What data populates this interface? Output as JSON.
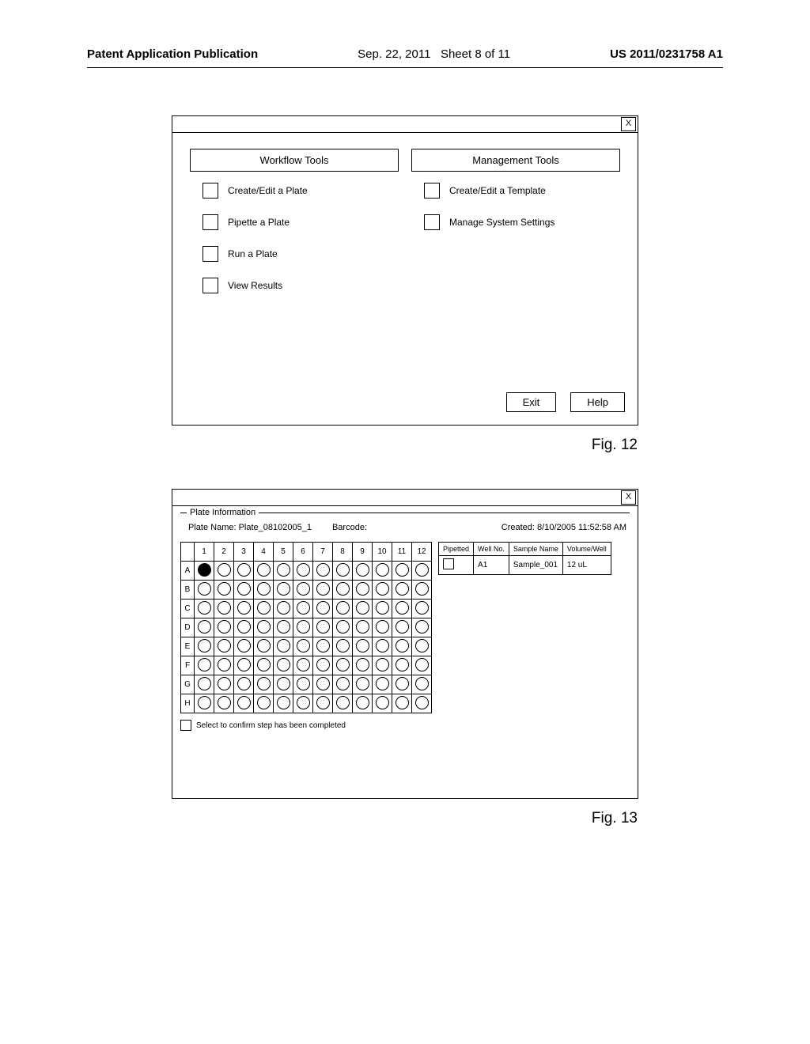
{
  "header": {
    "left": "Patent Application Publication",
    "date": "Sep. 22, 2011",
    "sheet": "Sheet 8 of 11",
    "pubno": "US 2011/0231758 A1"
  },
  "fig12": {
    "close": "X",
    "workflow_title": "Workflow Tools",
    "management_title": "Management Tools",
    "workflow": [
      "Create/Edit a Plate",
      "Pipette a Plate",
      "Run a Plate",
      "View Results"
    ],
    "management": [
      "Create/Edit a Template",
      "Manage System Settings"
    ],
    "exit": "Exit",
    "help": "Help",
    "caption": "Fig. 12"
  },
  "fig13": {
    "close": "X",
    "pi_label": "Plate Information",
    "plate_name_lbl": "Plate Name:",
    "plate_name": "Plate_08102005_1",
    "barcode_lbl": "Barcode:",
    "barcode": "",
    "created_lbl": "Created:",
    "created": "8/10/2005  11:52:58 AM",
    "cols": [
      "1",
      "2",
      "3",
      "4",
      "5",
      "6",
      "7",
      "8",
      "9",
      "10",
      "11",
      "12"
    ],
    "rows": [
      "A",
      "B",
      "C",
      "D",
      "E",
      "F",
      "G",
      "H"
    ],
    "selected": "A1",
    "theaders": [
      "Pipetted",
      "Well No.",
      "Sample Name",
      "Volume/Well"
    ],
    "trow": {
      "well": "A1",
      "sample": "Sample_001",
      "vol": "12 uL"
    },
    "confirm": "Select to confirm step has been completed",
    "caption": "Fig. 13"
  }
}
